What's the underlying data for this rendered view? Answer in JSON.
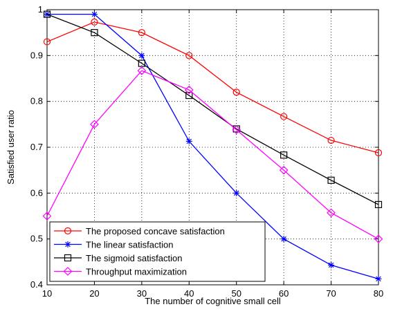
{
  "chart_data": {
    "type": "line",
    "xlabel": "The number of cognitive small cell",
    "ylabel": "Satisfied user ratio",
    "xlim": [
      10,
      80
    ],
    "ylim": [
      0.4,
      1.0
    ],
    "xticks": [
      "10",
      "20",
      "30",
      "40",
      "50",
      "60",
      "70",
      "80"
    ],
    "yticks": [
      "0.4",
      "0.5",
      "0.6",
      "0.7",
      "0.8",
      "0.9",
      "1"
    ],
    "grid": true,
    "legend_position": "bottom-left",
    "x": [
      10,
      20,
      30,
      40,
      50,
      60,
      70,
      80
    ],
    "series": [
      {
        "name": "The proposed concave satisfaction",
        "color": "#ff0000",
        "marker": "circle",
        "values": [
          0.93,
          0.973,
          0.95,
          0.9,
          0.82,
          0.767,
          0.715,
          0.688
        ]
      },
      {
        "name": "The linear satisfaction",
        "color": "#0000ff",
        "marker": "asterisk",
        "values": [
          0.99,
          0.99,
          0.9,
          0.713,
          0.6,
          0.5,
          0.443,
          0.413
        ]
      },
      {
        "name": "The sigmoid satisfaction",
        "color": "#000000",
        "marker": "square",
        "values": [
          0.99,
          0.95,
          0.883,
          0.813,
          0.74,
          0.683,
          0.628,
          0.575
        ]
      },
      {
        "name": "Throughput maximization",
        "color": "#ff00ff",
        "marker": "diamond",
        "values": [
          0.55,
          0.75,
          0.867,
          0.825,
          0.738,
          0.65,
          0.557,
          0.5
        ]
      }
    ]
  }
}
